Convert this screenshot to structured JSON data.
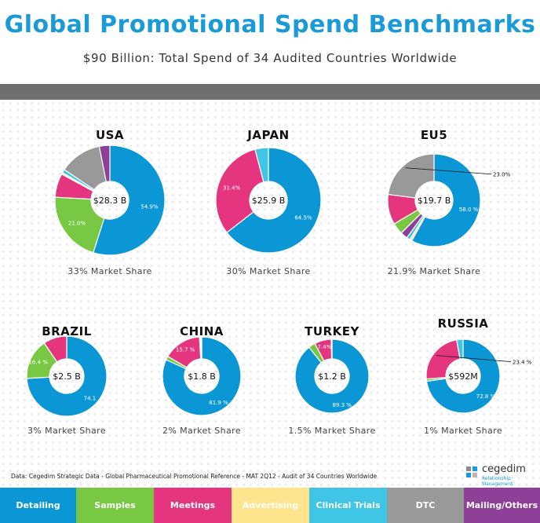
{
  "header": {
    "title": "Global Promotional Spend Benchmarks",
    "subtitle": "$90 Billion:  Total Spend of 34 Audited Countries Worldwide"
  },
  "colors": {
    "Detailing": "#0b97d6",
    "Samples": "#79c843",
    "Meetings": "#e6357f",
    "Advertising": "#ffe48e",
    "Clinical Trials": "#3fc5e5",
    "DTC": "#999999",
    "Mailing/Others": "#8e3f98"
  },
  "chart_data": [
    {
      "type": "pie",
      "title": "USA",
      "center_label": "$28.3 B",
      "share_label": "33% Market Share",
      "labels": [
        "Detailing",
        "Samples",
        "Meetings",
        "Advertising",
        "Clinical Trials",
        "DTC",
        "Mailing/Others"
      ],
      "values": [
        54.9,
        21.0,
        7.0,
        0.5,
        1.0,
        12.5,
        3.1
      ],
      "value_labels": [
        "54.9%",
        "21.0%",
        "",
        "",
        "",
        "",
        ""
      ]
    },
    {
      "type": "pie",
      "title": "JAPAN",
      "center_label": "$25.9 B",
      "share_label": "30% Market Share",
      "labels": [
        "Detailing",
        "Meetings",
        "Clinical Trials"
      ],
      "values": [
        64.5,
        31.4,
        4.1
      ],
      "value_labels": [
        "64.5%",
        "31.4%",
        ""
      ]
    },
    {
      "type": "pie",
      "title": "EU5",
      "center_label": "$19.7 B",
      "share_label": "21.9% Market Share",
      "labels": [
        "Detailing",
        "Advertising",
        "Clinical Trials",
        "Mailing/Others",
        "Samples",
        "Meetings",
        "DTC"
      ],
      "values": [
        58.0,
        0.8,
        1.2,
        2.5,
        4.0,
        10.5,
        23.0
      ],
      "value_labels": [
        "58.0 %",
        "",
        "",
        "",
        "",
        "",
        "23.0%"
      ]
    },
    {
      "type": "pie",
      "title": "BRAZIL",
      "center_label": "$2.5 B",
      "share_label": "3% Market Share",
      "labels": [
        "Detailing",
        "Samples",
        "Meetings"
      ],
      "values": [
        74.1,
        16.4,
        9.5
      ],
      "value_labels": [
        "74.1",
        "16.4 %",
        ""
      ]
    },
    {
      "type": "pie",
      "title": "CHINA",
      "center_label": "$1.8 B",
      "share_label": "2% Market Share",
      "labels": [
        "Detailing",
        "Samples",
        "Meetings",
        "Clinical Trials",
        "DTC"
      ],
      "values": [
        81.9,
        1.5,
        15.7,
        0.5,
        0.4
      ],
      "value_labels": [
        "81.9 %",
        "",
        "15.7 %",
        "",
        ""
      ]
    },
    {
      "type": "pie",
      "title": "TURKEY",
      "center_label": "$1.2 B",
      "share_label": "1.5% Market Share",
      "labels": [
        "Detailing",
        "Samples",
        "Meetings",
        "Clinical Trials"
      ],
      "values": [
        89.3,
        3.0,
        7.4,
        0.3
      ],
      "value_labels": [
        "89.3 %",
        "",
        "7.4%",
        ""
      ]
    },
    {
      "type": "pie",
      "title": "RUSSIA",
      "center_label": "$592M",
      "share_label": "1% Market Share",
      "labels": [
        "Detailing",
        "Samples",
        "Meetings",
        "Clinical Trials"
      ],
      "values": [
        72.8,
        1.0,
        23.4,
        2.8
      ],
      "value_labels": [
        "72.8 %",
        "",
        "23.4 %",
        ""
      ]
    }
  ],
  "footer": {
    "source": "Data: Cegedim Strategic Data - Global Pharmaceutical Promotional Reference - MAT 2Q12 - Audit of 34 Countries Worldwide",
    "logo_name": "cegedim",
    "logo_tagline": "Relationship Management"
  },
  "legend": [
    {
      "label": "Detailing",
      "color": "#0b97d6",
      "text_color": "#ffffff"
    },
    {
      "label": "Samples",
      "color": "#79c843",
      "text_color": "#ffffff"
    },
    {
      "label": "Meetings",
      "color": "#e6357f",
      "text_color": "#ffffff"
    },
    {
      "label": "Advertising",
      "color": "#ffe48e",
      "text_color": "#ffffff"
    },
    {
      "label": "Clinical Trials",
      "color": "#3fc5e5",
      "text_color": "#ffffff"
    },
    {
      "label": "DTC",
      "color": "#999999",
      "text_color": "#ffffff"
    },
    {
      "label": "Mailing/Others",
      "color": "#8e3f98",
      "text_color": "#ffffff"
    }
  ]
}
